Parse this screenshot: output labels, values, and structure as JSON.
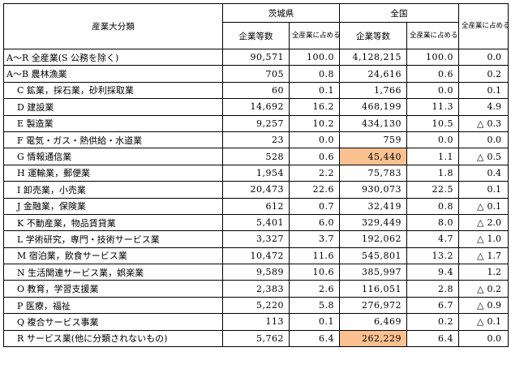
{
  "header": {
    "category": "産業大分類",
    "prefecture": "茨城県",
    "nation": "全国",
    "companies": "企業等数",
    "share": "全産業に占める割合(%)",
    "comparison": "全産業に占める割合の比較(県－全国)"
  },
  "rows": [
    {
      "label": "A～R 全産業(S 公務を除く)",
      "indent": false,
      "pref_count": "90,571",
      "pref_share": "100.0",
      "nat_count": "4,128,215",
      "nat_share": "100.0",
      "tri": "",
      "diff": "0.0",
      "hl": false
    },
    {
      "label": "A～B 農林漁業",
      "indent": false,
      "pref_count": "705",
      "pref_share": "0.8",
      "nat_count": "24,616",
      "nat_share": "0.6",
      "tri": "",
      "diff": "0.2",
      "hl": false
    },
    {
      "label": "C 鉱業，採石業，砂利採取業",
      "indent": true,
      "pref_count": "60",
      "pref_share": "0.1",
      "nat_count": "1,766",
      "nat_share": "0.0",
      "tri": "",
      "diff": "0.1",
      "hl": false
    },
    {
      "label": "D 建設業",
      "indent": true,
      "pref_count": "14,692",
      "pref_share": "16.2",
      "nat_count": "468,199",
      "nat_share": "11.3",
      "tri": "",
      "diff": "4.9",
      "hl": false
    },
    {
      "label": "E 製造業",
      "indent": true,
      "pref_count": "9,257",
      "pref_share": "10.2",
      "nat_count": "434,130",
      "nat_share": "10.5",
      "tri": "△",
      "diff": "0.3",
      "hl": false
    },
    {
      "label": "F 電気・ガス・熱供給・水道業",
      "indent": true,
      "pref_count": "23",
      "pref_share": "0.0",
      "nat_count": "759",
      "nat_share": "0.0",
      "tri": "",
      "diff": "0.0",
      "hl": false
    },
    {
      "label": "G 情報通信業",
      "indent": true,
      "pref_count": "528",
      "pref_share": "0.6",
      "nat_count": "45,440",
      "nat_share": "1.1",
      "tri": "△",
      "diff": "0.5",
      "hl": true
    },
    {
      "label": "H 運輸業，郵便業",
      "indent": true,
      "pref_count": "1,954",
      "pref_share": "2.2",
      "nat_count": "75,783",
      "nat_share": "1.8",
      "tri": "",
      "diff": "0.4",
      "hl": false
    },
    {
      "label": "I 卸売業，小売業",
      "indent": true,
      "pref_count": "20,473",
      "pref_share": "22.6",
      "nat_count": "930,073",
      "nat_share": "22.5",
      "tri": "",
      "diff": "0.1",
      "hl": false
    },
    {
      "label": "J 金融業，保険業",
      "indent": true,
      "pref_count": "612",
      "pref_share": "0.7",
      "nat_count": "32,419",
      "nat_share": "0.8",
      "tri": "△",
      "diff": "0.1",
      "hl": false
    },
    {
      "label": "K 不動産業，物品賃貸業",
      "indent": true,
      "pref_count": "5,401",
      "pref_share": "6.0",
      "nat_count": "329,449",
      "nat_share": "8.0",
      "tri": "△",
      "diff": "2.0",
      "hl": false
    },
    {
      "label": "L 学術研究，専門・技術サービス業",
      "indent": true,
      "pref_count": "3,327",
      "pref_share": "3.7",
      "nat_count": "192,062",
      "nat_share": "4.7",
      "tri": "△",
      "diff": "1.0",
      "hl": false
    },
    {
      "label": "M 宿泊業，飲食サービス業",
      "indent": true,
      "pref_count": "10,472",
      "pref_share": "11.6",
      "nat_count": "545,801",
      "nat_share": "13.2",
      "tri": "△",
      "diff": "1.7",
      "hl": false
    },
    {
      "label": "N 生活関連サービス業，娯楽業",
      "indent": true,
      "pref_count": "9,589",
      "pref_share": "10.6",
      "nat_count": "385,997",
      "nat_share": "9.4",
      "tri": "",
      "diff": "1.2",
      "hl": false
    },
    {
      "label": "O 教育，学習支援業",
      "indent": true,
      "pref_count": "2,383",
      "pref_share": "2.6",
      "nat_count": "116,051",
      "nat_share": "2.8",
      "tri": "△",
      "diff": "0.2",
      "hl": false
    },
    {
      "label": "P 医療，福祉",
      "indent": true,
      "pref_count": "5,220",
      "pref_share": "5.8",
      "nat_count": "276,972",
      "nat_share": "6.7",
      "tri": "△",
      "diff": "0.9",
      "hl": false
    },
    {
      "label": "Q 複合サービス事業",
      "indent": true,
      "pref_count": "113",
      "pref_share": "0.1",
      "nat_count": "6,469",
      "nat_share": "0.2",
      "tri": "△",
      "diff": "0.1",
      "hl": false
    },
    {
      "label": "R サービス業(他に分類されないもの)",
      "indent": true,
      "pref_count": "5,762",
      "pref_share": "6.4",
      "nat_count": "262,229",
      "nat_share": "6.4",
      "tri": "",
      "diff": "0.0",
      "hl": true
    }
  ]
}
